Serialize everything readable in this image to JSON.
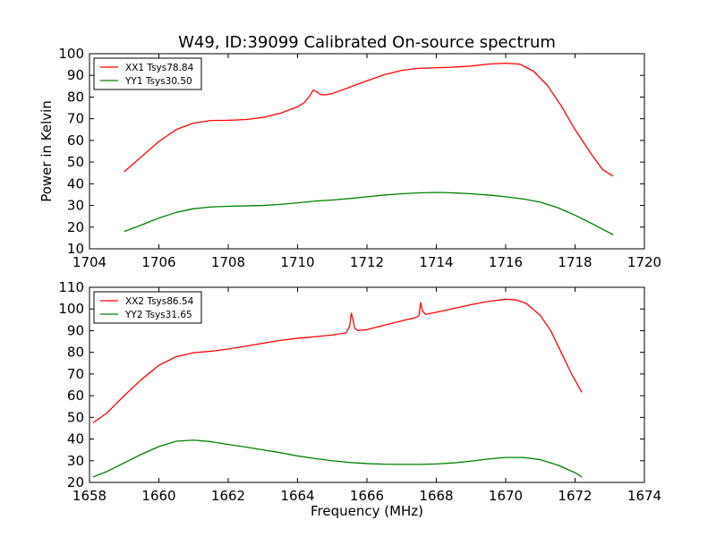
{
  "figure": {
    "title": "W49, ID:39099 Calibrated On-source spectrum",
    "colors": {
      "xx": "#ff0000",
      "yy": "#008000",
      "frame": "#000000"
    }
  },
  "chart_data": [
    {
      "type": "line",
      "xlabel": "",
      "ylabel": "Power in Kelvin",
      "xlim": [
        1704,
        1720
      ],
      "ylim": [
        10,
        100
      ],
      "xticks": [
        1704,
        1706,
        1708,
        1710,
        1712,
        1714,
        1716,
        1718,
        1720
      ],
      "yticks": [
        10,
        20,
        30,
        40,
        50,
        60,
        70,
        80,
        90,
        100
      ],
      "legend_position": "top-left",
      "grid": false,
      "series": [
        {
          "name": "XX1 Tsys78.84",
          "color": "#ff0000",
          "points": [
            [
              1705.0,
              45.5
            ],
            [
              1705.5,
              52.5
            ],
            [
              1706.0,
              59.5
            ],
            [
              1706.5,
              65.0
            ],
            [
              1707.0,
              68.0
            ],
            [
              1707.5,
              69.2
            ],
            [
              1708.0,
              69.3
            ],
            [
              1708.5,
              69.6
            ],
            [
              1709.0,
              70.6
            ],
            [
              1709.5,
              72.5
            ],
            [
              1710.0,
              75.5
            ],
            [
              1710.2,
              77.5
            ],
            [
              1710.35,
              80.5
            ],
            [
              1710.45,
              83.2
            ],
            [
              1710.55,
              82.5
            ],
            [
              1710.65,
              81.2
            ],
            [
              1710.8,
              81.0
            ],
            [
              1711.0,
              81.6
            ],
            [
              1711.5,
              84.5
            ],
            [
              1712.0,
              87.5
            ],
            [
              1712.5,
              90.3
            ],
            [
              1713.0,
              92.3
            ],
            [
              1713.5,
              93.3
            ],
            [
              1714.0,
              93.5
            ],
            [
              1714.5,
              93.8
            ],
            [
              1715.0,
              94.3
            ],
            [
              1715.5,
              95.2
            ],
            [
              1716.0,
              95.6
            ],
            [
              1716.4,
              95.2
            ],
            [
              1716.8,
              92.0
            ],
            [
              1717.2,
              85.5
            ],
            [
              1717.6,
              76.0
            ],
            [
              1718.0,
              65.0
            ],
            [
              1718.5,
              53.0
            ],
            [
              1718.8,
              46.5
            ],
            [
              1719.1,
              43.5
            ]
          ]
        },
        {
          "name": "YY1 Tsys30.50",
          "color": "#008000",
          "points": [
            [
              1705.0,
              18.0
            ],
            [
              1705.5,
              21.0
            ],
            [
              1706.0,
              24.2
            ],
            [
              1706.5,
              26.8
            ],
            [
              1707.0,
              28.5
            ],
            [
              1707.5,
              29.3
            ],
            [
              1708.0,
              29.6
            ],
            [
              1708.5,
              29.8
            ],
            [
              1709.0,
              30.0
            ],
            [
              1709.5,
              30.5
            ],
            [
              1710.0,
              31.2
            ],
            [
              1710.5,
              32.0
            ],
            [
              1711.0,
              32.5
            ],
            [
              1711.5,
              33.2
            ],
            [
              1712.0,
              34.0
            ],
            [
              1712.5,
              34.8
            ],
            [
              1713.0,
              35.4
            ],
            [
              1713.5,
              35.8
            ],
            [
              1714.0,
              36.0
            ],
            [
              1714.5,
              35.8
            ],
            [
              1715.0,
              35.4
            ],
            [
              1715.5,
              34.8
            ],
            [
              1716.0,
              34.0
            ],
            [
              1716.5,
              33.0
            ],
            [
              1717.0,
              31.5
            ],
            [
              1717.5,
              29.0
            ],
            [
              1718.0,
              25.5
            ],
            [
              1718.5,
              21.5
            ],
            [
              1719.1,
              16.5
            ]
          ]
        }
      ]
    },
    {
      "type": "line",
      "xlabel": "Frequency (MHz)",
      "ylabel": "",
      "xlim": [
        1658,
        1674
      ],
      "ylim": [
        20,
        110
      ],
      "xticks": [
        1658,
        1660,
        1662,
        1664,
        1666,
        1668,
        1670,
        1672,
        1674
      ],
      "yticks": [
        20,
        30,
        40,
        50,
        60,
        70,
        80,
        90,
        100,
        110
      ],
      "legend_position": "top-left",
      "grid": false,
      "series": [
        {
          "name": "XX2 Tsys86.54",
          "color": "#ff0000",
          "points": [
            [
              1658.1,
              47.5
            ],
            [
              1658.5,
              52.0
            ],
            [
              1659.0,
              60.0
            ],
            [
              1659.5,
              67.5
            ],
            [
              1660.0,
              74.0
            ],
            [
              1660.5,
              78.0
            ],
            [
              1661.0,
              79.8
            ],
            [
              1661.5,
              80.5
            ],
            [
              1662.0,
              81.5
            ],
            [
              1662.5,
              82.8
            ],
            [
              1663.0,
              84.2
            ],
            [
              1663.5,
              85.5
            ],
            [
              1664.0,
              86.5
            ],
            [
              1664.5,
              87.2
            ],
            [
              1665.0,
              88.0
            ],
            [
              1665.4,
              89.0
            ],
            [
              1665.5,
              92.0
            ],
            [
              1665.55,
              98.0
            ],
            [
              1665.6,
              95.0
            ],
            [
              1665.65,
              91.0
            ],
            [
              1665.75,
              90.0
            ],
            [
              1666.0,
              90.5
            ],
            [
              1666.5,
              92.5
            ],
            [
              1667.0,
              94.5
            ],
            [
              1667.4,
              96.0
            ],
            [
              1667.5,
              97.0
            ],
            [
              1667.55,
              103.0
            ],
            [
              1667.6,
              99.0
            ],
            [
              1667.7,
              97.5
            ],
            [
              1668.0,
              98.5
            ],
            [
              1668.5,
              100.2
            ],
            [
              1669.0,
              102.0
            ],
            [
              1669.5,
              103.5
            ],
            [
              1670.0,
              104.5
            ],
            [
              1670.3,
              104.2
            ],
            [
              1670.6,
              102.5
            ],
            [
              1671.0,
              97.0
            ],
            [
              1671.3,
              90.0
            ],
            [
              1671.6,
              80.0
            ],
            [
              1671.9,
              70.0
            ],
            [
              1672.2,
              61.5
            ]
          ]
        },
        {
          "name": "YY2 Tsys31.65",
          "color": "#008000",
          "points": [
            [
              1658.1,
              22.5
            ],
            [
              1658.5,
              25.0
            ],
            [
              1659.0,
              29.0
            ],
            [
              1659.5,
              33.0
            ],
            [
              1660.0,
              36.5
            ],
            [
              1660.5,
              39.0
            ],
            [
              1661.0,
              39.5
            ],
            [
              1661.5,
              38.8
            ],
            [
              1662.0,
              37.5
            ],
            [
              1662.5,
              36.3
            ],
            [
              1663.0,
              35.0
            ],
            [
              1663.5,
              33.7
            ],
            [
              1664.0,
              32.2
            ],
            [
              1664.5,
              31.0
            ],
            [
              1665.0,
              30.0
            ],
            [
              1665.5,
              29.2
            ],
            [
              1666.0,
              28.7
            ],
            [
              1666.5,
              28.4
            ],
            [
              1667.0,
              28.3
            ],
            [
              1667.5,
              28.3
            ],
            [
              1668.0,
              28.5
            ],
            [
              1668.5,
              29.0
            ],
            [
              1669.0,
              29.8
            ],
            [
              1669.5,
              30.8
            ],
            [
              1670.0,
              31.5
            ],
            [
              1670.5,
              31.5
            ],
            [
              1671.0,
              30.5
            ],
            [
              1671.5,
              28.0
            ],
            [
              1672.0,
              24.5
            ],
            [
              1672.2,
              22.5
            ]
          ]
        }
      ]
    }
  ]
}
